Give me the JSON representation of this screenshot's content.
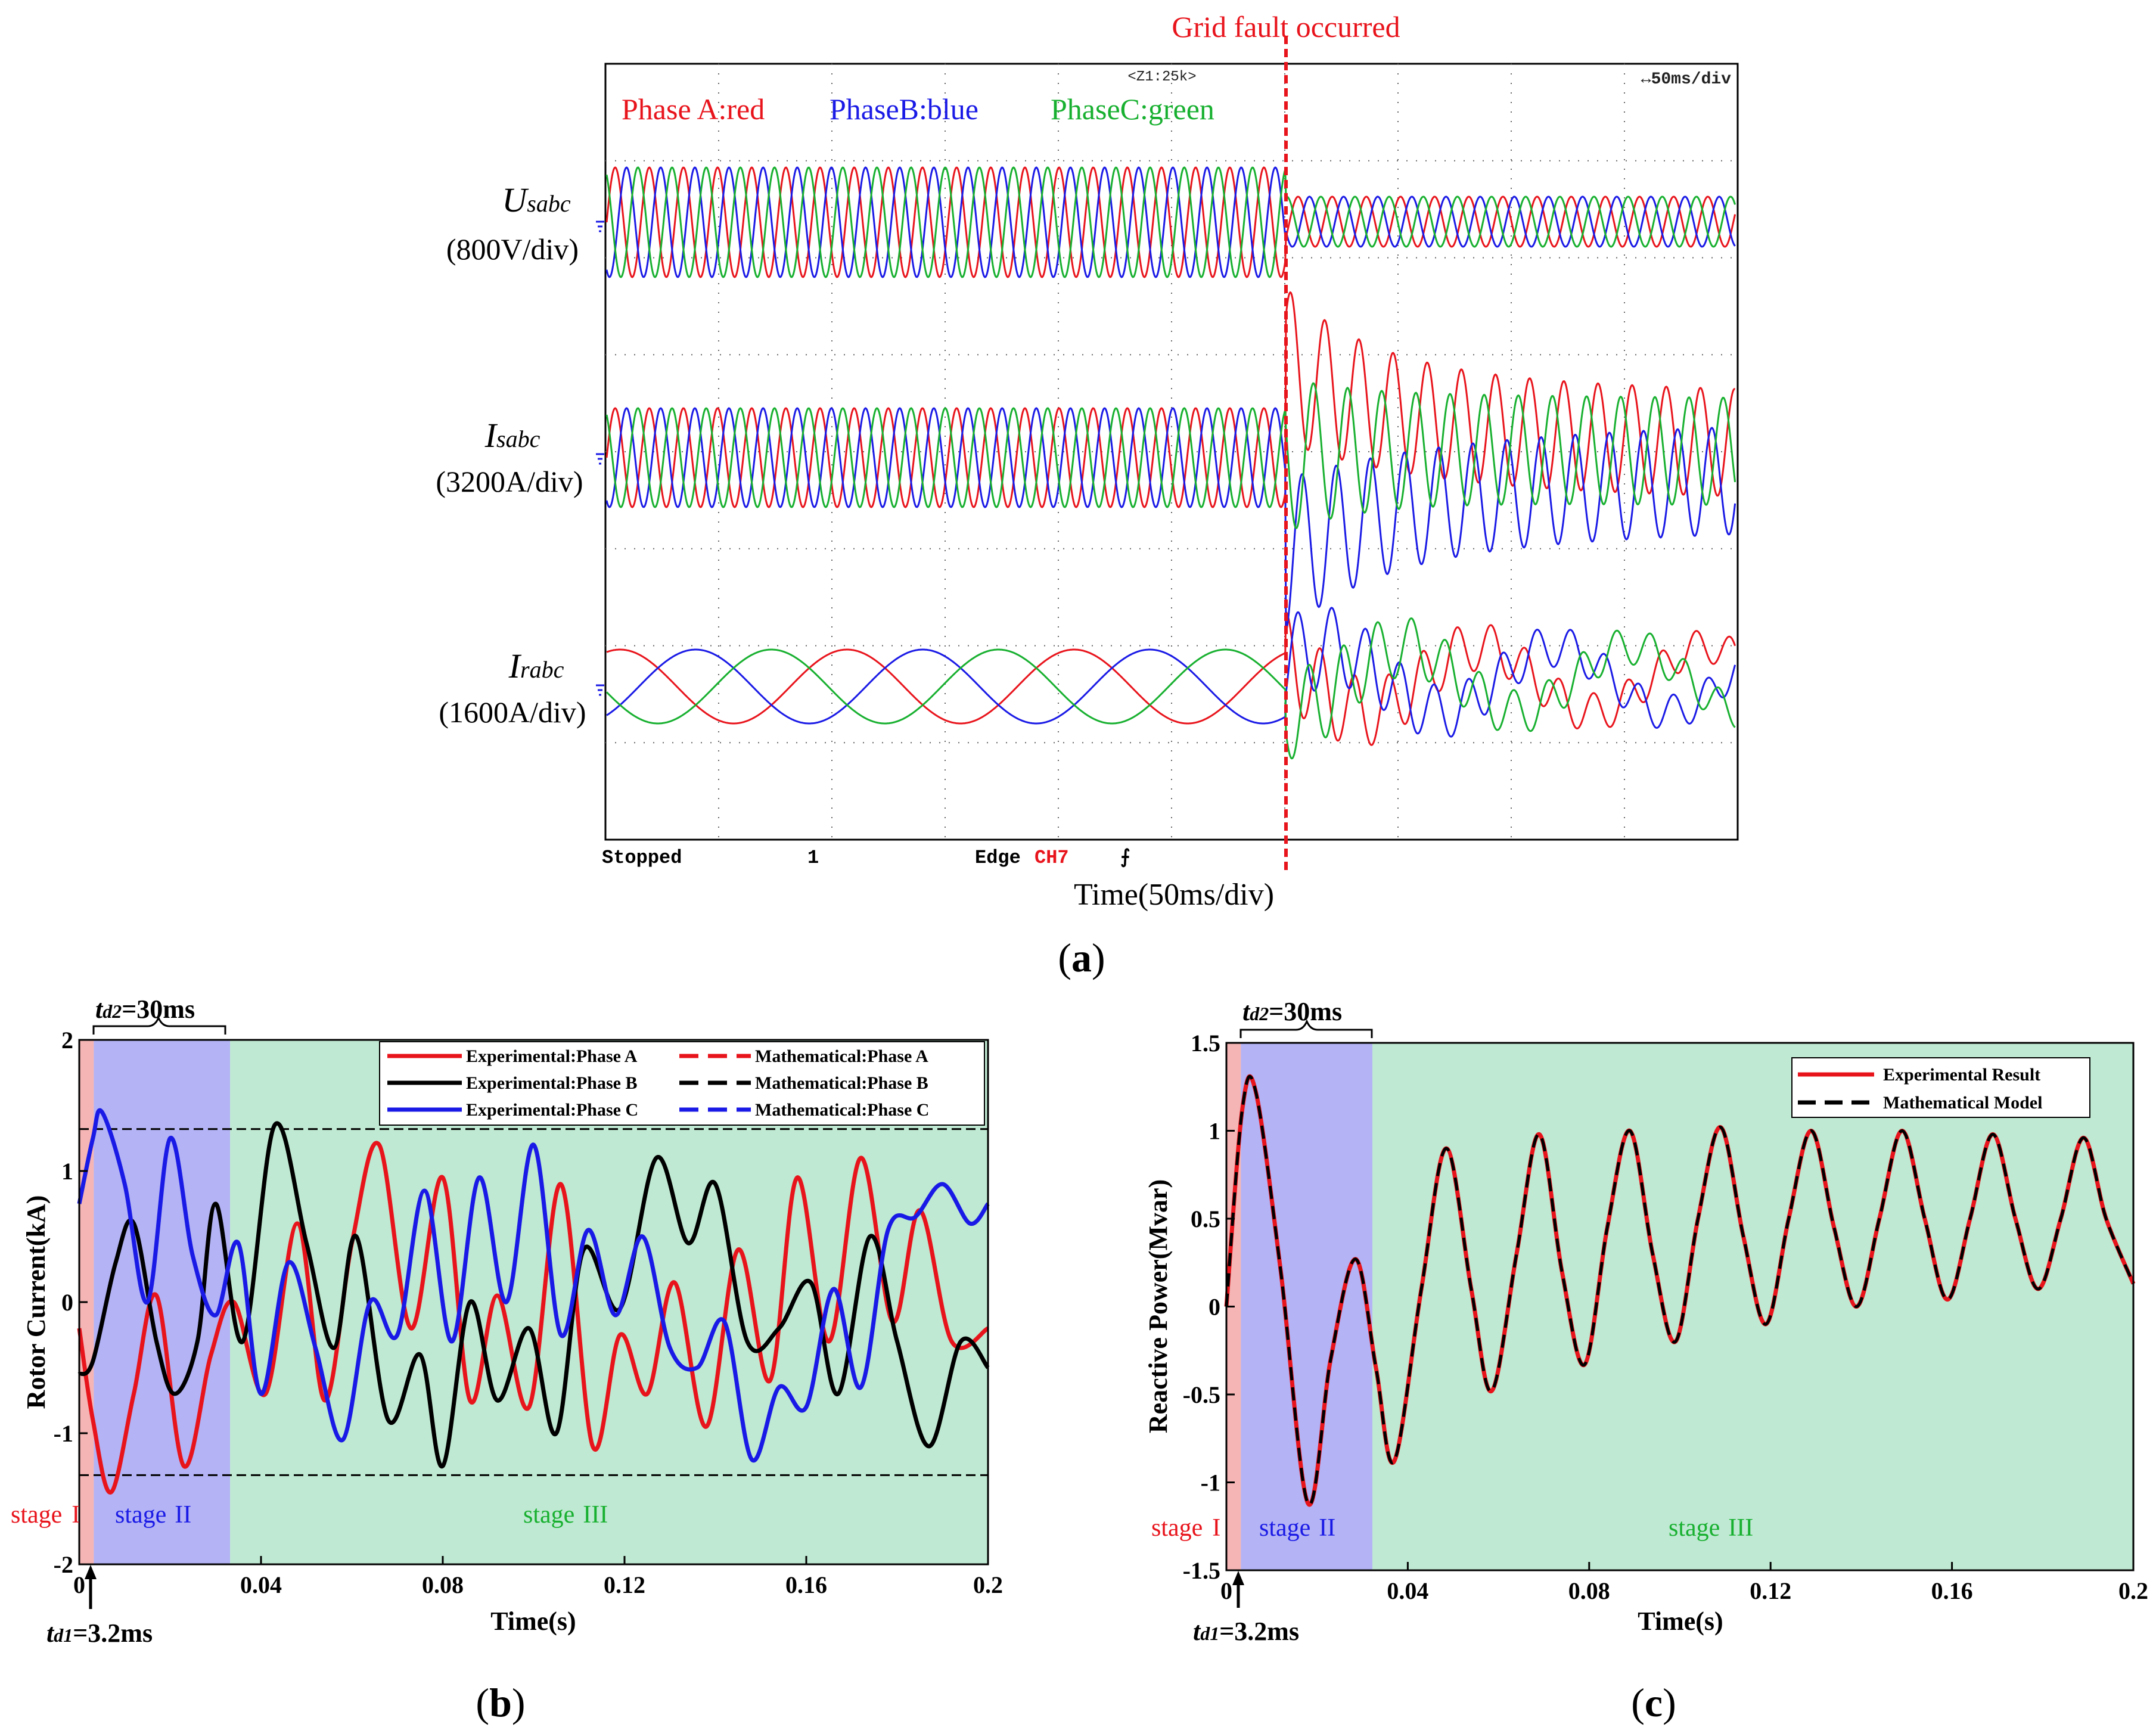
{
  "colors": {
    "red": "#e8141c",
    "blue": "#1a1ae6",
    "green": "#18b030",
    "black": "#000000",
    "stage1": "#f5b5b5",
    "stage2": "#b3b3f5",
    "stage3": "#bfe9d2",
    "scope_grid": "#666666"
  },
  "panel_a": {
    "fault_label": "Grid fault occurred",
    "zoom_label": "<Z1:25k>",
    "timebase_label": "↔50ms/div",
    "legend": {
      "a": "Phase A:red",
      "b": "PhaseB:blue",
      "c": "PhaseC:green"
    },
    "channels": [
      {
        "sym": "U",
        "sub": "sabc",
        "scale": "(800V/div)"
      },
      {
        "sym": "I",
        "sub": "sabc",
        "scale": "(3200A/div)"
      },
      {
        "sym": "I",
        "sub": "rabc",
        "scale": "(1600A/div)"
      }
    ],
    "status": {
      "stopped": "Stopped",
      "count": "1",
      "edge": "Edge",
      "ch": "CH7",
      "slope": "⨍"
    },
    "xlabel": "Time(50ms/div)",
    "caption_open": "(",
    "caption_letter": "a",
    "caption_close": ")"
  },
  "chart_data": [
    {
      "id": "b",
      "type": "line",
      "xlabel": "Time(s)",
      "ylabel": "Rotor Current(kA)",
      "xlim": [
        0,
        0.2
      ],
      "ylim": [
        -2,
        2
      ],
      "xticks": [
        "0",
        "0.04",
        "0.08",
        "0.12",
        "0.16",
        "0.2"
      ],
      "yticks": [
        "2",
        "1",
        "0",
        "-1",
        "-2"
      ],
      "limit_lines": [
        1.32,
        -1.32
      ],
      "stages": [
        {
          "label_a": "stage",
          "label_b": "I",
          "from": 0,
          "to": 0.0032
        },
        {
          "label_a": "stage",
          "label_b": "II",
          "from": 0.0032,
          "to": 0.0332
        },
        {
          "label_a": "stage",
          "label_b": "III",
          "from": 0.0332,
          "to": 0.2
        }
      ],
      "annot_td2_t": "t",
      "annot_td2_sub": "d2",
      "annot_td2_val": "=30ms",
      "annot_td1_t": "t",
      "annot_td1_sub": "d1",
      "annot_td1_val": "=3.2ms",
      "legend": [
        "Experimental:Phase A",
        "Mathematical:Phase A",
        "Experimental:Phase B",
        "Mathematical:Phase B",
        "Experimental:Phase C",
        "Mathematical:Phase C"
      ],
      "series": [
        {
          "name": "Phase A",
          "color": "red",
          "x": [
            0,
            0.003,
            0.007,
            0.012,
            0.017,
            0.023,
            0.029,
            0.034,
            0.041,
            0.048,
            0.054,
            0.06,
            0.066,
            0.073,
            0.08,
            0.086,
            0.092,
            0.099,
            0.106,
            0.113,
            0.119,
            0.125,
            0.131,
            0.138,
            0.145,
            0.152,
            0.158,
            0.165,
            0.172,
            0.179,
            0.185,
            0.192,
            0.2
          ],
          "y": [
            -0.2,
            -0.9,
            -1.45,
            -0.7,
            0.05,
            -1.25,
            -0.4,
            0.0,
            -0.7,
            0.6,
            -0.75,
            0.45,
            1.2,
            -0.2,
            0.95,
            -0.75,
            0.05,
            -0.8,
            0.9,
            -1.1,
            -0.25,
            -0.7,
            0.15,
            -0.95,
            0.4,
            -0.6,
            0.95,
            -0.3,
            1.1,
            -0.15,
            0.7,
            -0.3,
            -0.2
          ]
        },
        {
          "name": "Phase B",
          "color": "black",
          "x": [
            0,
            0.003,
            0.008,
            0.012,
            0.017,
            0.021,
            0.026,
            0.03,
            0.036,
            0.043,
            0.05,
            0.056,
            0.061,
            0.068,
            0.075,
            0.08,
            0.086,
            0.092,
            0.099,
            0.105,
            0.111,
            0.119,
            0.127,
            0.134,
            0.14,
            0.147,
            0.154,
            0.161,
            0.167,
            0.174,
            0.18,
            0.187,
            0.194,
            0.2
          ],
          "y": [
            -0.55,
            -0.45,
            0.3,
            0.6,
            -0.3,
            -0.7,
            -0.3,
            0.75,
            -0.3,
            1.35,
            0.45,
            -0.35,
            0.5,
            -0.9,
            -0.4,
            -1.25,
            0.0,
            -0.75,
            -0.2,
            -1.0,
            0.4,
            -0.05,
            1.1,
            0.45,
            0.9,
            -0.3,
            -0.2,
            0.15,
            -0.7,
            0.5,
            -0.3,
            -1.1,
            -0.3,
            -0.5
          ]
        },
        {
          "name": "Phase C",
          "color": "blue",
          "x": [
            0,
            0.003,
            0.005,
            0.01,
            0.015,
            0.02,
            0.025,
            0.03,
            0.035,
            0.04,
            0.046,
            0.052,
            0.058,
            0.064,
            0.07,
            0.076,
            0.082,
            0.088,
            0.094,
            0.1,
            0.106,
            0.112,
            0.118,
            0.124,
            0.13,
            0.136,
            0.142,
            0.148,
            0.154,
            0.16,
            0.166,
            0.172,
            0.178,
            0.184,
            0.19,
            0.196,
            0.2
          ],
          "y": [
            0.75,
            1.25,
            1.45,
            0.9,
            0.0,
            1.25,
            0.35,
            -0.1,
            0.45,
            -0.7,
            0.3,
            -0.35,
            -1.05,
            0.0,
            -0.25,
            0.85,
            -0.3,
            0.95,
            0.0,
            1.2,
            -0.25,
            0.55,
            -0.1,
            0.5,
            -0.35,
            -0.5,
            -0.15,
            -1.2,
            -0.65,
            -0.8,
            0.1,
            -0.65,
            0.55,
            0.65,
            0.9,
            0.6,
            0.75
          ]
        }
      ]
    },
    {
      "id": "c",
      "type": "line",
      "xlabel": "Time(s)",
      "ylabel": "Reactive Power(Mvar)",
      "xlim": [
        0,
        0.2
      ],
      "ylim": [
        -1.5,
        1.5
      ],
      "xticks": [
        "0",
        "0.04",
        "0.08",
        "0.12",
        "0.16",
        "0.2"
      ],
      "yticks": [
        "1.5",
        "1",
        "0.5",
        "0",
        "-0.5",
        "-1",
        "-1.5"
      ],
      "stages": [
        {
          "label_a": "stage",
          "label_b": "I",
          "from": 0,
          "to": 0.0032
        },
        {
          "label_a": "stage",
          "label_b": "II",
          "from": 0.0032,
          "to": 0.0322
        },
        {
          "label_a": "stage",
          "label_b": "III",
          "from": 0.0322,
          "to": 0.2
        }
      ],
      "annot_td2_t": "t",
      "annot_td2_sub": "d2",
      "annot_td2_val": "=30ms",
      "annot_td1_t": "t",
      "annot_td1_sub": "d1",
      "annot_td1_val": "=3.2ms",
      "legend": [
        "Experimental Result",
        "Mathematical Model"
      ],
      "series": [
        {
          "name": "Reactive Power",
          "color": "red",
          "dash_color": "black",
          "x": [
            0,
            0.0035,
            0.0065,
            0.012,
            0.018,
            0.023,
            0.0285,
            0.033,
            0.037,
            0.043,
            0.0485,
            0.054,
            0.0585,
            0.064,
            0.069,
            0.074,
            0.079,
            0.084,
            0.089,
            0.094,
            0.099,
            0.104,
            0.109,
            0.114,
            0.119,
            0.124,
            0.129,
            0.134,
            0.139,
            0.144,
            0.149,
            0.154,
            0.159,
            0.164,
            0.169,
            0.174,
            0.179,
            0.184,
            0.189,
            0.194,
            0.2
          ],
          "y": [
            0,
            1.12,
            1.22,
            0.2,
            -1.12,
            -0.3,
            0.27,
            -0.35,
            -0.88,
            0.1,
            0.9,
            0.1,
            -0.48,
            0.3,
            0.98,
            0.2,
            -0.33,
            0.45,
            1.0,
            0.3,
            -0.2,
            0.5,
            1.02,
            0.4,
            -0.1,
            0.5,
            1.0,
            0.45,
            0.0,
            0.5,
            1.0,
            0.5,
            0.04,
            0.5,
            0.98,
            0.5,
            0.1,
            0.5,
            0.96,
            0.5,
            0.13
          ]
        }
      ]
    }
  ],
  "caption_b_letter": "b",
  "caption_c_letter": "c"
}
